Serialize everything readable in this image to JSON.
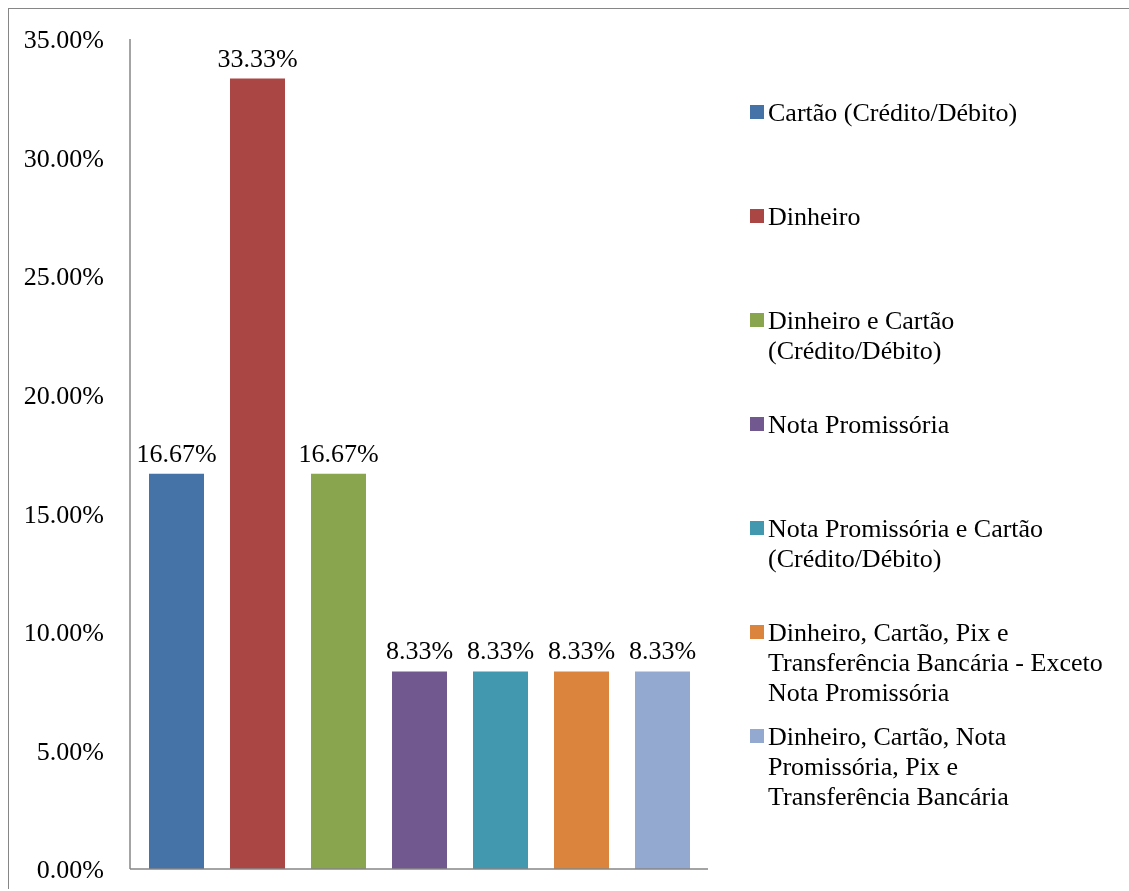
{
  "chart_data": {
    "type": "bar",
    "categories": [
      null
    ],
    "series": [
      {
        "name": "Cartão (Crédito/Débito)",
        "color": "#4572a7",
        "values": [
          16.67
        ],
        "value_labels": [
          "16.67%"
        ]
      },
      {
        "name": "Dinheiro",
        "color": "#aa4643",
        "values": [
          33.33
        ],
        "value_labels": [
          "33.33%"
        ]
      },
      {
        "name": "Dinheiro e Cartão (Crédito/Débito)",
        "color": "#89a54e",
        "values": [
          16.67
        ],
        "value_labels": [
          "16.67%"
        ]
      },
      {
        "name": "Nota Promissória",
        "color": "#71588f",
        "values": [
          8.33
        ],
        "value_labels": [
          "8.33%"
        ]
      },
      {
        "name": "Nota Promissória e Cartão (Crédito/Débito)",
        "color": "#4198af",
        "values": [
          8.33
        ],
        "value_labels": [
          "8.33%"
        ]
      },
      {
        "name": "Dinheiro, Cartão, Pix e Transferência Bancária - Exceto Nota Promissória",
        "color": "#db843d",
        "values": [
          8.33
        ],
        "value_labels": [
          "8.33%"
        ]
      },
      {
        "name": "Dinheiro, Cartão, Nota Promissória, Pix e Transferência Bancária",
        "color": "#93a9cf",
        "values": [
          8.33
        ],
        "value_labels": [
          "8.33%"
        ]
      }
    ],
    "ylim": [
      0,
      35
    ],
    "yticks": [
      {
        "value": 0,
        "label": "0.00%"
      },
      {
        "value": 5,
        "label": "5.00%"
      },
      {
        "value": 10,
        "label": "10.00%"
      },
      {
        "value": 15,
        "label": "15.00%"
      },
      {
        "value": 20,
        "label": "20.00%"
      },
      {
        "value": 25,
        "label": "25.00%"
      },
      {
        "value": 30,
        "label": "30.00%"
      },
      {
        "value": 35,
        "label": "35.00%"
      }
    ],
    "legend": "right",
    "tick_labels": "y"
  }
}
